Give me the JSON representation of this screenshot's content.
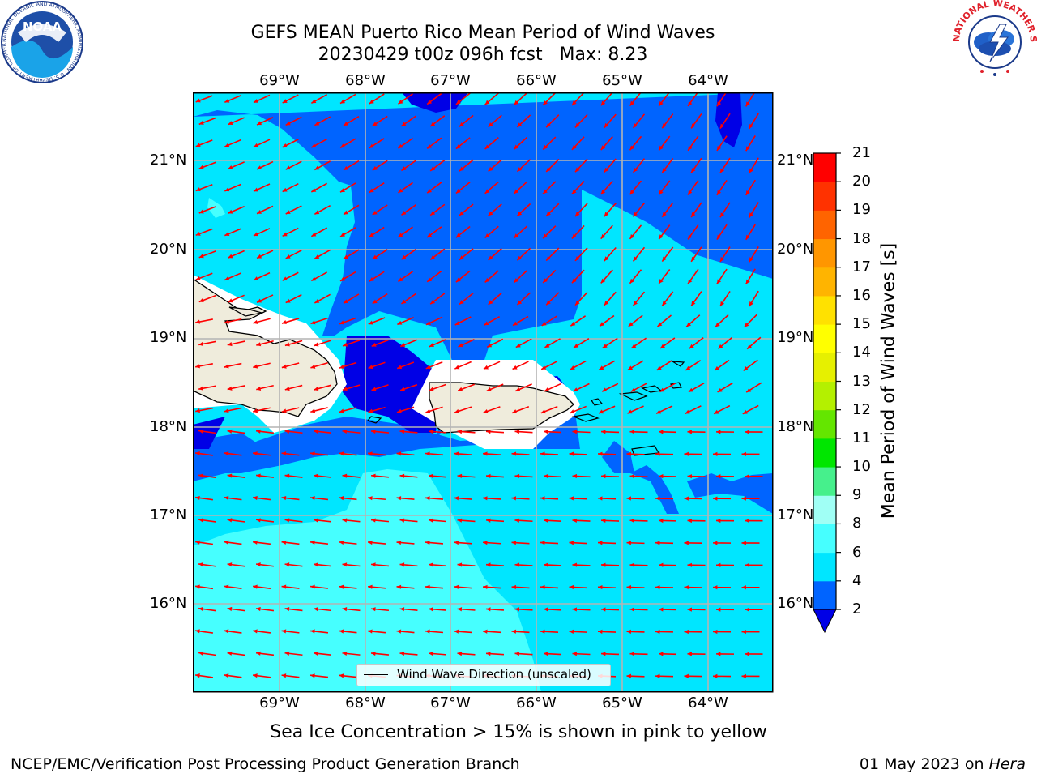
{
  "title": {
    "line1": "GEFS MEAN Puerto Rico Mean Period of Wind Waves",
    "line2": "20230429 t00z 096h fcst   Max: 8.23"
  },
  "map": {
    "lon_labels": [
      "69°W",
      "68°W",
      "67°W",
      "66°W",
      "65°W",
      "64°W"
    ],
    "lat_labels": [
      "21°N",
      "20°N",
      "19°N",
      "18°N",
      "17°N",
      "16°N"
    ],
    "legend_label": "Wind Wave Direction (unscaled)",
    "land_color": "#efecdc",
    "arrow_color": "#ff0000",
    "grid_color": "#b4b4b4"
  },
  "colorbar": {
    "title": "Mean Period of Wind Waves [s]",
    "ticks": [
      "2",
      "4",
      "6",
      "8",
      "9",
      "10",
      "11",
      "12",
      "13",
      "14",
      "15",
      "16",
      "17",
      "18",
      "19",
      "20",
      "21"
    ],
    "colors": [
      "#0064ff",
      "#00e6ff",
      "#46ffff",
      "#a0fff5",
      "#46f08c",
      "#00e600",
      "#64e600",
      "#b4f000",
      "#e6f000",
      "#ffff00",
      "#ffe100",
      "#ffb400",
      "#ff9600",
      "#ff6400",
      "#ff3200",
      "#ff0000"
    ],
    "under_color": "#0000e6"
  },
  "footer": {
    "note": "Sea Ice Concentration > 15% is shown in pink to yellow",
    "credit": "NCEP/EMC/Verification Post Processing Product Generation Branch",
    "date_prefix": "01 May 2023 on ",
    "date_machine": "Hera"
  },
  "logos": {
    "noaa_text": "NOAA",
    "noaa_ring": "NATIONAL OCEANIC AND ATMOSPHERIC ADMINISTRATION · U.S. DEPARTMENT OF COMMERCE",
    "nws_ring": "NATIONAL WEATHER SERVICE"
  }
}
